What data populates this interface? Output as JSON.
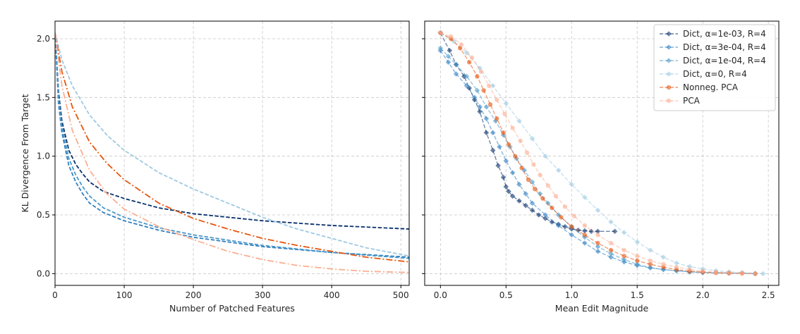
{
  "chart_data": [
    {
      "type": "line",
      "xlabel": "Number of Patched Features",
      "ylabel": "KL Divergence From Target",
      "xlim": [
        0,
        512
      ],
      "ylim": [
        -0.1,
        2.15
      ],
      "xticks": [
        0,
        100,
        200,
        300,
        400,
        500
      ],
      "yticks": [
        0.0,
        0.5,
        1.0,
        1.5,
        2.0
      ],
      "grid": true,
      "series": [
        {
          "color": "#08306b",
          "style": "dashed",
          "x": [
            0,
            5,
            10,
            20,
            30,
            40,
            50,
            70,
            100,
            150,
            200,
            300,
            400,
            512
          ],
          "y": [
            2.05,
            1.55,
            1.3,
            1.05,
            0.93,
            0.85,
            0.78,
            0.7,
            0.64,
            0.56,
            0.51,
            0.45,
            0.41,
            0.38
          ]
        },
        {
          "color": "#2f7fc1",
          "style": "dashed",
          "x": [
            0,
            5,
            10,
            20,
            30,
            40,
            50,
            70,
            100,
            150,
            200,
            300,
            400,
            512
          ],
          "y": [
            2.05,
            1.45,
            1.2,
            0.92,
            0.78,
            0.68,
            0.6,
            0.52,
            0.45,
            0.37,
            0.31,
            0.23,
            0.18,
            0.14
          ]
        },
        {
          "color": "#4a98c9",
          "style": "dashed",
          "x": [
            0,
            5,
            10,
            20,
            30,
            40,
            50,
            70,
            100,
            150,
            200,
            300,
            400,
            512
          ],
          "y": [
            2.05,
            1.5,
            1.25,
            0.98,
            0.84,
            0.74,
            0.66,
            0.56,
            0.48,
            0.39,
            0.33,
            0.24,
            0.18,
            0.13
          ]
        },
        {
          "color": "#9ecae1",
          "style": "dashed",
          "x": [
            0,
            10,
            25,
            50,
            75,
            100,
            150,
            200,
            250,
            300,
            350,
            400,
            450,
            512
          ],
          "y": [
            2.05,
            1.82,
            1.6,
            1.35,
            1.18,
            1.05,
            0.86,
            0.72,
            0.6,
            0.48,
            0.38,
            0.3,
            0.22,
            0.15
          ]
        },
        {
          "color": "#e6550d",
          "style": "dashdot",
          "x": [
            0,
            10,
            25,
            50,
            75,
            100,
            150,
            200,
            250,
            300,
            350,
            400,
            450,
            512
          ],
          "y": [
            2.05,
            1.72,
            1.42,
            1.12,
            0.94,
            0.8,
            0.6,
            0.47,
            0.38,
            0.3,
            0.24,
            0.19,
            0.14,
            0.1
          ]
        },
        {
          "color": "#fcae91",
          "style": "dashdot",
          "x": [
            0,
            10,
            25,
            50,
            75,
            100,
            150,
            200,
            250,
            300,
            350,
            400,
            450,
            512
          ],
          "y": [
            2.05,
            1.6,
            1.22,
            0.88,
            0.68,
            0.55,
            0.4,
            0.29,
            0.19,
            0.12,
            0.07,
            0.04,
            0.02,
            0.01
          ]
        }
      ]
    },
    {
      "type": "line",
      "xlabel": "Mean Edit Magnitude",
      "ylabel": "",
      "xlim": [
        -0.12,
        2.58
      ],
      "ylim": [
        -0.1,
        2.15
      ],
      "xticks": [
        0.0,
        0.5,
        1.0,
        1.5,
        2.0,
        2.5
      ],
      "xtick_labels": [
        "0.0",
        "0.5",
        "1.0",
        "1.5",
        "2.0",
        "2.5"
      ],
      "grid": true,
      "legend": "top-right",
      "series": [
        {
          "name": "Dict, α=1e-03, R=4",
          "color": "#08306b",
          "marker": "diamond",
          "alpha": 0.6,
          "x": [
            0.0,
            0.07,
            0.12,
            0.18,
            0.22,
            0.26,
            0.3,
            0.35,
            0.4,
            0.44,
            0.48,
            0.5,
            0.52,
            0.55,
            0.6,
            0.65,
            0.7,
            0.75,
            0.8,
            0.85,
            0.9,
            0.95,
            1.0,
            1.05,
            1.1,
            1.15,
            1.2,
            1.33
          ],
          "y": [
            2.05,
            1.9,
            1.78,
            1.68,
            1.58,
            1.48,
            1.38,
            1.2,
            1.05,
            0.92,
            0.82,
            0.74,
            0.7,
            0.66,
            0.62,
            0.58,
            0.54,
            0.5,
            0.47,
            0.44,
            0.42,
            0.4,
            0.38,
            0.37,
            0.365,
            0.36,
            0.36,
            0.36
          ]
        },
        {
          "name": "Dict, α=3e-04, R=4",
          "color": "#2f7fc1",
          "marker": "diamond",
          "alpha": 0.6,
          "x": [
            0.0,
            0.06,
            0.12,
            0.2,
            0.26,
            0.3,
            0.35,
            0.4,
            0.45,
            0.5,
            0.55,
            0.6,
            0.65,
            0.7,
            0.8,
            0.9,
            1.0,
            1.1,
            1.2,
            1.3,
            1.4,
            1.5,
            1.6,
            1.7,
            1.8,
            1.9,
            2.0,
            2.2,
            2.4
          ],
          "y": [
            1.9,
            1.8,
            1.7,
            1.6,
            1.5,
            1.42,
            1.32,
            1.2,
            1.08,
            0.96,
            0.86,
            0.76,
            0.68,
            0.6,
            0.5,
            0.41,
            0.33,
            0.26,
            0.19,
            0.14,
            0.1,
            0.07,
            0.05,
            0.035,
            0.025,
            0.015,
            0.01,
            0.005,
            0.0
          ]
        },
        {
          "name": "Dict, α=1e-04, R=4",
          "color": "#4a98c9",
          "marker": "diamond",
          "alpha": 0.6,
          "x": [
            0.0,
            0.06,
            0.12,
            0.2,
            0.28,
            0.35,
            0.42,
            0.48,
            0.53,
            0.58,
            0.64,
            0.7,
            0.76,
            0.82,
            0.9,
            1.0,
            1.1,
            1.2,
            1.3,
            1.4,
            1.5,
            1.6,
            1.7,
            1.8,
            1.9,
            2.0,
            2.2,
            2.4
          ],
          "y": [
            1.92,
            1.85,
            1.78,
            1.68,
            1.56,
            1.42,
            1.3,
            1.18,
            1.08,
            0.98,
            0.88,
            0.78,
            0.68,
            0.6,
            0.5,
            0.4,
            0.31,
            0.23,
            0.17,
            0.12,
            0.08,
            0.05,
            0.035,
            0.025,
            0.015,
            0.01,
            0.005,
            0.0
          ]
        },
        {
          "name": "Dict, α=0, R=4",
          "color": "#9ecae1",
          "marker": "diamond",
          "alpha": 0.6,
          "x": [
            0.0,
            0.1,
            0.2,
            0.3,
            0.4,
            0.5,
            0.6,
            0.7,
            0.8,
            0.9,
            1.0,
            1.1,
            1.2,
            1.3,
            1.4,
            1.5,
            1.6,
            1.7,
            1.8,
            1.9,
            2.0,
            2.1,
            2.2,
            2.3,
            2.46
          ],
          "y": [
            2.05,
            1.98,
            1.88,
            1.75,
            1.6,
            1.45,
            1.3,
            1.15,
            1.0,
            0.88,
            0.76,
            0.65,
            0.54,
            0.44,
            0.35,
            0.27,
            0.2,
            0.14,
            0.09,
            0.06,
            0.04,
            0.025,
            0.015,
            0.01,
            0.0
          ]
        },
        {
          "name": "Nonneg. PCA",
          "color": "#e6550d",
          "marker": "circle",
          "alpha": 0.6,
          "x": [
            0.0,
            0.08,
            0.15,
            0.22,
            0.28,
            0.33,
            0.38,
            0.43,
            0.48,
            0.52,
            0.57,
            0.62,
            0.67,
            0.72,
            0.78,
            0.85,
            0.92,
            1.0,
            1.1,
            1.2,
            1.3,
            1.4,
            1.5,
            1.6,
            1.7,
            1.8,
            1.9,
            2.0,
            2.1,
            2.2,
            2.3,
            2.4
          ],
          "y": [
            2.05,
            2.0,
            1.92,
            1.8,
            1.68,
            1.56,
            1.44,
            1.32,
            1.2,
            1.1,
            1.0,
            0.9,
            0.8,
            0.72,
            0.64,
            0.56,
            0.48,
            0.4,
            0.33,
            0.26,
            0.2,
            0.15,
            0.11,
            0.08,
            0.055,
            0.035,
            0.02,
            0.012,
            0.007,
            0.004,
            0.002,
            0.0
          ]
        },
        {
          "name": "PCA",
          "color": "#fcae91",
          "marker": "circle",
          "alpha": 0.6,
          "x": [
            0.0,
            0.08,
            0.16,
            0.24,
            0.31,
            0.37,
            0.43,
            0.49,
            0.55,
            0.61,
            0.66,
            0.71,
            0.76,
            0.82,
            0.88,
            0.95,
            1.02,
            1.1,
            1.2,
            1.3,
            1.4,
            1.5,
            1.6,
            1.7,
            1.8,
            1.9,
            2.0,
            2.1,
            2.2,
            2.3,
            2.4
          ],
          "y": [
            2.05,
            2.02,
            1.95,
            1.84,
            1.72,
            1.6,
            1.48,
            1.36,
            1.24,
            1.13,
            1.03,
            0.93,
            0.84,
            0.75,
            0.66,
            0.57,
            0.49,
            0.41,
            0.33,
            0.26,
            0.2,
            0.15,
            0.11,
            0.08,
            0.055,
            0.035,
            0.02,
            0.012,
            0.007,
            0.003,
            0.0
          ]
        }
      ]
    }
  ]
}
